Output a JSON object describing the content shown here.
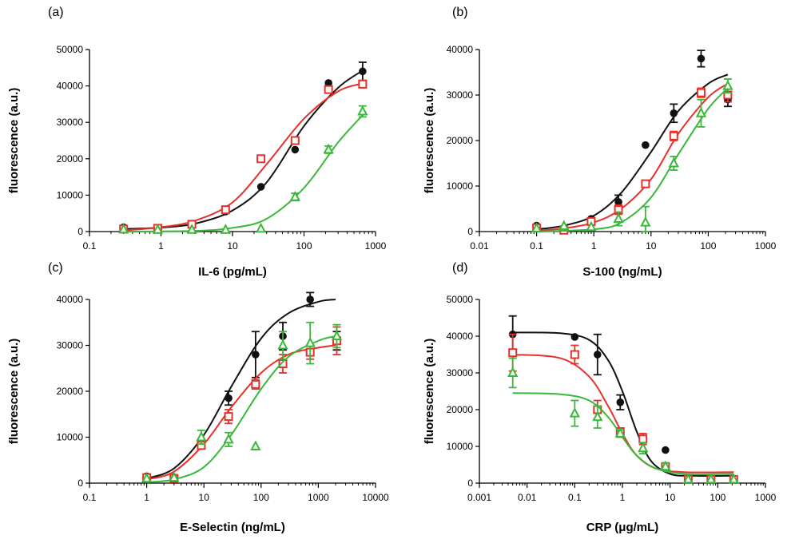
{
  "colors": {
    "black": "#111111",
    "red": "#e8302a",
    "green": "#39b83a"
  },
  "chart_data": [
    {
      "panel": "(a)",
      "type": "scatter",
      "xscale": "log",
      "xlabel": "IL-6 (pg/mL)",
      "ylabel": "fluorescence (a.u.)",
      "xlim": [
        0.1,
        1000
      ],
      "ylim": [
        0,
        50000
      ],
      "xticks": [
        "0.1",
        "1",
        "10",
        "100",
        "1000"
      ],
      "yticks": [
        "0",
        "10000",
        "20000",
        "30000",
        "40000",
        "50000"
      ],
      "xtick_values": [
        0.1,
        1,
        10,
        100,
        1000
      ],
      "ytick_values": [
        0,
        10000,
        20000,
        30000,
        40000,
        50000
      ],
      "series": [
        {
          "name": "black",
          "marker": "circle",
          "x": [
            0.3,
            0.9,
            2.7,
            8,
            25,
            75,
            220,
            660
          ],
          "y": [
            1200,
            800,
            1800,
            5500,
            12300,
            22500,
            40800,
            44000
          ],
          "err": [
            0,
            0,
            0,
            0,
            0,
            0,
            0,
            2500
          ],
          "curve": [
            [
              0.3,
              700
            ],
            [
              1,
              1100
            ],
            [
              3,
              2200
            ],
            [
              10,
              5800
            ],
            [
              30,
              13500
            ],
            [
              100,
              29000
            ],
            [
              300,
              39500
            ],
            [
              700,
              44500
            ]
          ]
        },
        {
          "name": "red",
          "marker": "square",
          "x": [
            0.3,
            0.9,
            2.7,
            8,
            25,
            75,
            220,
            660
          ],
          "y": [
            700,
            900,
            2000,
            6000,
            20000,
            25000,
            39000,
            40500
          ],
          "err": [
            0,
            0,
            0,
            0,
            0,
            0,
            0,
            1000
          ],
          "curve": [
            [
              0.3,
              300
            ],
            [
              1,
              1200
            ],
            [
              3,
              3000
            ],
            [
              10,
              8000
            ],
            [
              30,
              18500
            ],
            [
              100,
              31000
            ],
            [
              300,
              38500
            ],
            [
              700,
              40800
            ]
          ]
        },
        {
          "name": "green",
          "marker": "triangle",
          "x": [
            0.3,
            0.9,
            2.7,
            8,
            25,
            75,
            220,
            660
          ],
          "y": [
            600,
            500,
            500,
            500,
            800,
            9500,
            22500,
            33000
          ],
          "err": [
            0,
            0,
            0,
            0,
            0,
            1000,
            1000,
            1500
          ],
          "curve": [
            [
              0.3,
              0
            ],
            [
              3,
              200
            ],
            [
              10,
              1000
            ],
            [
              30,
              3500
            ],
            [
              100,
              12000
            ],
            [
              300,
              24500
            ],
            [
              700,
              32500
            ]
          ]
        }
      ]
    },
    {
      "panel": "(b)",
      "type": "scatter",
      "xscale": "log",
      "xlabel": "S-100 (ng/mL)",
      "ylabel": "fluorescence (a.u.)",
      "xlim": [
        0.01,
        1000
      ],
      "ylim": [
        0,
        40000
      ],
      "xticks": [
        "0.01",
        "0.1",
        "1",
        "10",
        "100",
        "1000"
      ],
      "yticks": [
        "0",
        "10000",
        "20000",
        "30000",
        "40000"
      ],
      "xtick_values": [
        0.01,
        0.1,
        1,
        10,
        100,
        1000
      ],
      "ytick_values": [
        0,
        10000,
        20000,
        30000,
        40000
      ],
      "series": [
        {
          "name": "black",
          "marker": "circle",
          "x": [
            0.1,
            0.3,
            0.9,
            2.7,
            8,
            25,
            75,
            220
          ],
          "y": [
            1300,
            400,
            2800,
            6500,
            19000,
            26000,
            38000,
            29000
          ],
          "err": [
            0,
            0,
            0,
            1500,
            0,
            2000,
            1800,
            1500
          ],
          "curve": [
            [
              0.1,
              500
            ],
            [
              0.3,
              1300
            ],
            [
              1,
              3500
            ],
            [
              3,
              8500
            ],
            [
              10,
              17500
            ],
            [
              30,
              26500
            ],
            [
              100,
              32500
            ],
            [
              220,
              34500
            ]
          ]
        },
        {
          "name": "red",
          "marker": "square",
          "x": [
            0.1,
            0.3,
            0.9,
            2.7,
            8,
            25,
            75,
            220
          ],
          "y": [
            800,
            300,
            2200,
            4800,
            10500,
            21000,
            30500,
            30000
          ],
          "err": [
            0,
            0,
            0,
            1000,
            0,
            1000,
            1000,
            1500
          ],
          "curve": [
            [
              0.1,
              200
            ],
            [
              0.3,
              700
            ],
            [
              1,
              2000
            ],
            [
              3,
              5000
            ],
            [
              10,
              11500
            ],
            [
              30,
              21500
            ],
            [
              100,
              29500
            ],
            [
              220,
              32500
            ]
          ]
        },
        {
          "name": "green",
          "marker": "triangle",
          "x": [
            0.1,
            0.3,
            0.9,
            2.7,
            8,
            25,
            75,
            220
          ],
          "y": [
            700,
            1200,
            1000,
            2800,
            2000,
            15000,
            26000,
            32000
          ],
          "err": [
            0,
            0,
            0,
            1500,
            3500,
            1500,
            3000,
            1500
          ],
          "curve": [
            [
              0.1,
              0
            ],
            [
              1,
              500
            ],
            [
              3,
              2000
            ],
            [
              10,
              7500
            ],
            [
              30,
              17000
            ],
            [
              100,
              27000
            ],
            [
              220,
              31500
            ]
          ]
        }
      ]
    },
    {
      "panel": "(c)",
      "type": "scatter",
      "xscale": "log",
      "xlabel": "E-Selectin (ng/mL)",
      "ylabel": "fluorescence (a.u.)",
      "xlim": [
        0.1,
        10000
      ],
      "ylim": [
        0,
        40000
      ],
      "xticks": [
        "0.1",
        "1",
        "10",
        "100",
        "1000",
        "10000"
      ],
      "yticks": [
        "0",
        "10000",
        "20000",
        "30000",
        "40000"
      ],
      "xtick_values": [
        0.1,
        1,
        10,
        100,
        1000,
        10000
      ],
      "ytick_values": [
        0,
        10000,
        20000,
        30000,
        40000
      ],
      "series": [
        {
          "name": "black",
          "marker": "circle",
          "x": [
            1,
            3,
            9,
            27,
            80,
            240,
            720,
            2100
          ],
          "y": [
            1500,
            1300,
            8500,
            18500,
            28000,
            32000,
            40000,
            31000
          ],
          "err": [
            0,
            0,
            0,
            1500,
            5000,
            3000,
            1500,
            2000
          ],
          "curve": [
            [
              1,
              1000
            ],
            [
              3,
              3200
            ],
            [
              10,
              10500
            ],
            [
              30,
              21000
            ],
            [
              100,
              31500
            ],
            [
              300,
              37000
            ],
            [
              1000,
              39500
            ],
            [
              2000,
              40000
            ]
          ]
        },
        {
          "name": "red",
          "marker": "square",
          "x": [
            1,
            3,
            9,
            27,
            80,
            240,
            720,
            2100
          ],
          "y": [
            1200,
            1000,
            8200,
            14500,
            21500,
            26000,
            28500,
            31000
          ],
          "err": [
            0,
            0,
            0,
            1500,
            1000,
            2000,
            1500,
            3000
          ],
          "curve": [
            [
              1,
              800
            ],
            [
              3,
              2500
            ],
            [
              10,
              8500
            ],
            [
              30,
              16500
            ],
            [
              100,
              24000
            ],
            [
              300,
              28000
            ],
            [
              1000,
              29500
            ],
            [
              2000,
              30000
            ]
          ]
        },
        {
          "name": "green",
          "marker": "triangle",
          "x": [
            1,
            3,
            9,
            27,
            80,
            240,
            720,
            2100
          ],
          "y": [
            1000,
            1200,
            10000,
            9500,
            8000,
            30000,
            30500,
            32000
          ],
          "err": [
            0,
            0,
            1500,
            1500,
            0,
            3000,
            4500,
            2500
          ],
          "curve": [
            [
              1,
              200
            ],
            [
              3,
              800
            ],
            [
              10,
              3500
            ],
            [
              30,
              10500
            ],
            [
              100,
              20500
            ],
            [
              300,
              27500
            ],
            [
              1000,
              31000
            ],
            [
              2000,
              32000
            ]
          ]
        }
      ]
    },
    {
      "panel": "(d)",
      "type": "scatter",
      "xscale": "log",
      "xlabel": "CRP (μg/mL)",
      "ylabel": "fluorescence (a.u.)",
      "xlim": [
        0.001,
        1000
      ],
      "ylim": [
        0,
        50000
      ],
      "xticks": [
        "0.001",
        "0.01",
        "0.1",
        "1",
        "10",
        "100",
        "1000"
      ],
      "yticks": [
        "0",
        "10000",
        "20000",
        "30000",
        "40000",
        "50000"
      ],
      "xtick_values": [
        0.001,
        0.01,
        0.1,
        1,
        10,
        100,
        1000
      ],
      "ytick_values": [
        0,
        10000,
        20000,
        30000,
        40000,
        50000
      ],
      "series": [
        {
          "name": "black",
          "marker": "circle",
          "x": [
            0.005,
            0.1,
            0.3,
            0.9,
            2.7,
            8,
            24,
            72,
            216
          ],
          "y": [
            40500,
            39800,
            35000,
            22000,
            12000,
            9000,
            1000,
            1000,
            1000
          ],
          "err": [
            5000,
            0,
            5500,
            2000,
            1000,
            0,
            0,
            0,
            0
          ],
          "curve": [
            [
              0.005,
              41000
            ],
            [
              0.05,
              40800
            ],
            [
              0.2,
              39000
            ],
            [
              0.5,
              33500
            ],
            [
              1,
              25000
            ],
            [
              2,
              14000
            ],
            [
              4,
              6000
            ],
            [
              10,
              2500
            ],
            [
              30,
              2000
            ],
            [
              216,
              2000
            ]
          ]
        },
        {
          "name": "red",
          "marker": "square",
          "x": [
            0.005,
            0.1,
            0.3,
            0.9,
            2.7,
            8,
            24,
            72,
            216
          ],
          "y": [
            35500,
            35000,
            20000,
            14000,
            12000,
            4500,
            1000,
            1000,
            1000
          ],
          "err": [
            5000,
            2500,
            2500,
            1000,
            1500,
            1000,
            0,
            0,
            0
          ],
          "curve": [
            [
              0.005,
              35000
            ],
            [
              0.05,
              34000
            ],
            [
              0.2,
              29000
            ],
            [
              0.5,
              21000
            ],
            [
              1,
              13500
            ],
            [
              2,
              7500
            ],
            [
              5,
              4000
            ],
            [
              20,
              3000
            ],
            [
              216,
              3000
            ]
          ]
        },
        {
          "name": "green",
          "marker": "triangle",
          "x": [
            0.005,
            0.1,
            0.3,
            0.9,
            2.7,
            8,
            24,
            72,
            216
          ],
          "y": [
            30000,
            19000,
            18000,
            13500,
            9500,
            4500,
            1000,
            1000,
            1000
          ],
          "err": [
            4000,
            3500,
            3000,
            1000,
            1500,
            1000,
            0,
            0,
            0
          ],
          "curve": [
            [
              0.005,
              24500
            ],
            [
              0.05,
              24200
            ],
            [
              0.2,
              22500
            ],
            [
              0.5,
              18000
            ],
            [
              1,
              12500
            ],
            [
              2,
              7500
            ],
            [
              5,
              4000
            ],
            [
              20,
              2500
            ],
            [
              216,
              2500
            ]
          ]
        }
      ]
    }
  ]
}
